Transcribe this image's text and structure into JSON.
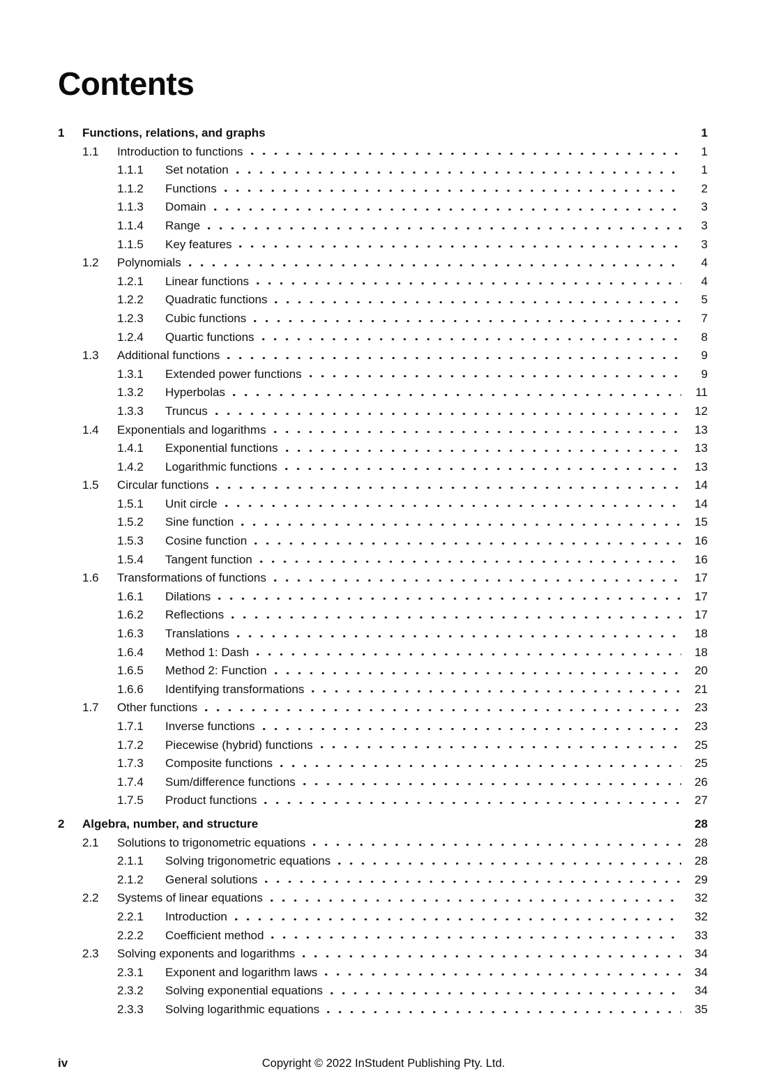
{
  "page": {
    "title": "Contents",
    "footer": {
      "page_label": "iv",
      "copyright": "Copyright © 2022 InStudent Publishing Pty. Ltd."
    }
  },
  "toc": {
    "chapters": [
      {
        "number": "1",
        "title": "Functions, relations, and graphs",
        "page": "1",
        "sections": [
          {
            "number": "1.1",
            "title": "Introduction to functions",
            "page": "1",
            "subsections": [
              {
                "number": "1.1.1",
                "title": "Set notation",
                "page": "1"
              },
              {
                "number": "1.1.2",
                "title": "Functions",
                "page": "2"
              },
              {
                "number": "1.1.3",
                "title": "Domain",
                "page": "3"
              },
              {
                "number": "1.1.4",
                "title": "Range",
                "page": "3"
              },
              {
                "number": "1.1.5",
                "title": "Key features",
                "page": "3"
              }
            ]
          },
          {
            "number": "1.2",
            "title": "Polynomials",
            "page": "4",
            "subsections": [
              {
                "number": "1.2.1",
                "title": "Linear functions",
                "page": "4"
              },
              {
                "number": "1.2.2",
                "title": "Quadratic functions",
                "page": "5"
              },
              {
                "number": "1.2.3",
                "title": "Cubic functions",
                "page": "7"
              },
              {
                "number": "1.2.4",
                "title": "Quartic functions",
                "page": "8"
              }
            ]
          },
          {
            "number": "1.3",
            "title": "Additional functions",
            "page": "9",
            "subsections": [
              {
                "number": "1.3.1",
                "title": "Extended power functions",
                "page": "9"
              },
              {
                "number": "1.3.2",
                "title": "Hyperbolas",
                "page": "11"
              },
              {
                "number": "1.3.3",
                "title": "Truncus",
                "page": "12"
              }
            ]
          },
          {
            "number": "1.4",
            "title": "Exponentials and logarithms",
            "page": "13",
            "subsections": [
              {
                "number": "1.4.1",
                "title": "Exponential functions",
                "page": "13"
              },
              {
                "number": "1.4.2",
                "title": "Logarithmic functions",
                "page": "13"
              }
            ]
          },
          {
            "number": "1.5",
            "title": "Circular functions",
            "page": "14",
            "subsections": [
              {
                "number": "1.5.1",
                "title": "Unit circle",
                "page": "14"
              },
              {
                "number": "1.5.2",
                "title": "Sine function",
                "page": "15"
              },
              {
                "number": "1.5.3",
                "title": "Cosine function",
                "page": "16"
              },
              {
                "number": "1.5.4",
                "title": "Tangent function",
                "page": "16"
              }
            ]
          },
          {
            "number": "1.6",
            "title": "Transformations of functions",
            "page": "17",
            "subsections": [
              {
                "number": "1.6.1",
                "title": "Dilations",
                "page": "17"
              },
              {
                "number": "1.6.2",
                "title": "Reflections",
                "page": "17"
              },
              {
                "number": "1.6.3",
                "title": "Translations",
                "page": "18"
              },
              {
                "number": "1.6.4",
                "title": "Method 1: Dash",
                "page": "18"
              },
              {
                "number": "1.6.5",
                "title": "Method 2: Function",
                "page": "20"
              },
              {
                "number": "1.6.6",
                "title": "Identifying transformations",
                "page": "21"
              }
            ]
          },
          {
            "number": "1.7",
            "title": "Other functions",
            "page": "23",
            "subsections": [
              {
                "number": "1.7.1",
                "title": "Inverse functions",
                "page": "23"
              },
              {
                "number": "1.7.2",
                "title": "Piecewise (hybrid) functions",
                "page": "25"
              },
              {
                "number": "1.7.3",
                "title": "Composite functions",
                "page": "25"
              },
              {
                "number": "1.7.4",
                "title": "Sum/difference functions",
                "page": "26"
              },
              {
                "number": "1.7.5",
                "title": "Product functions",
                "page": "27"
              }
            ]
          }
        ]
      },
      {
        "number": "2",
        "title": "Algebra, number, and structure",
        "page": "28",
        "sections": [
          {
            "number": "2.1",
            "title": "Solutions to trigonometric equations",
            "page": "28",
            "subsections": [
              {
                "number": "2.1.1",
                "title": "Solving trigonometric equations",
                "page": "28"
              },
              {
                "number": "2.1.2",
                "title": "General solutions",
                "page": "29"
              }
            ]
          },
          {
            "number": "2.2",
            "title": "Systems of linear equations",
            "page": "32",
            "subsections": [
              {
                "number": "2.2.1",
                "title": "Introduction",
                "page": "32"
              },
              {
                "number": "2.2.2",
                "title": "Coefficient method",
                "page": "33"
              }
            ]
          },
          {
            "number": "2.3",
            "title": "Solving exponents and logarithms",
            "page": "34",
            "subsections": [
              {
                "number": "2.3.1",
                "title": "Exponent and logarithm laws",
                "page": "34"
              },
              {
                "number": "2.3.2",
                "title": "Solving exponential equations",
                "page": "34"
              },
              {
                "number": "2.3.3",
                "title": "Solving logarithmic equations",
                "page": "35"
              }
            ]
          }
        ]
      }
    ]
  }
}
